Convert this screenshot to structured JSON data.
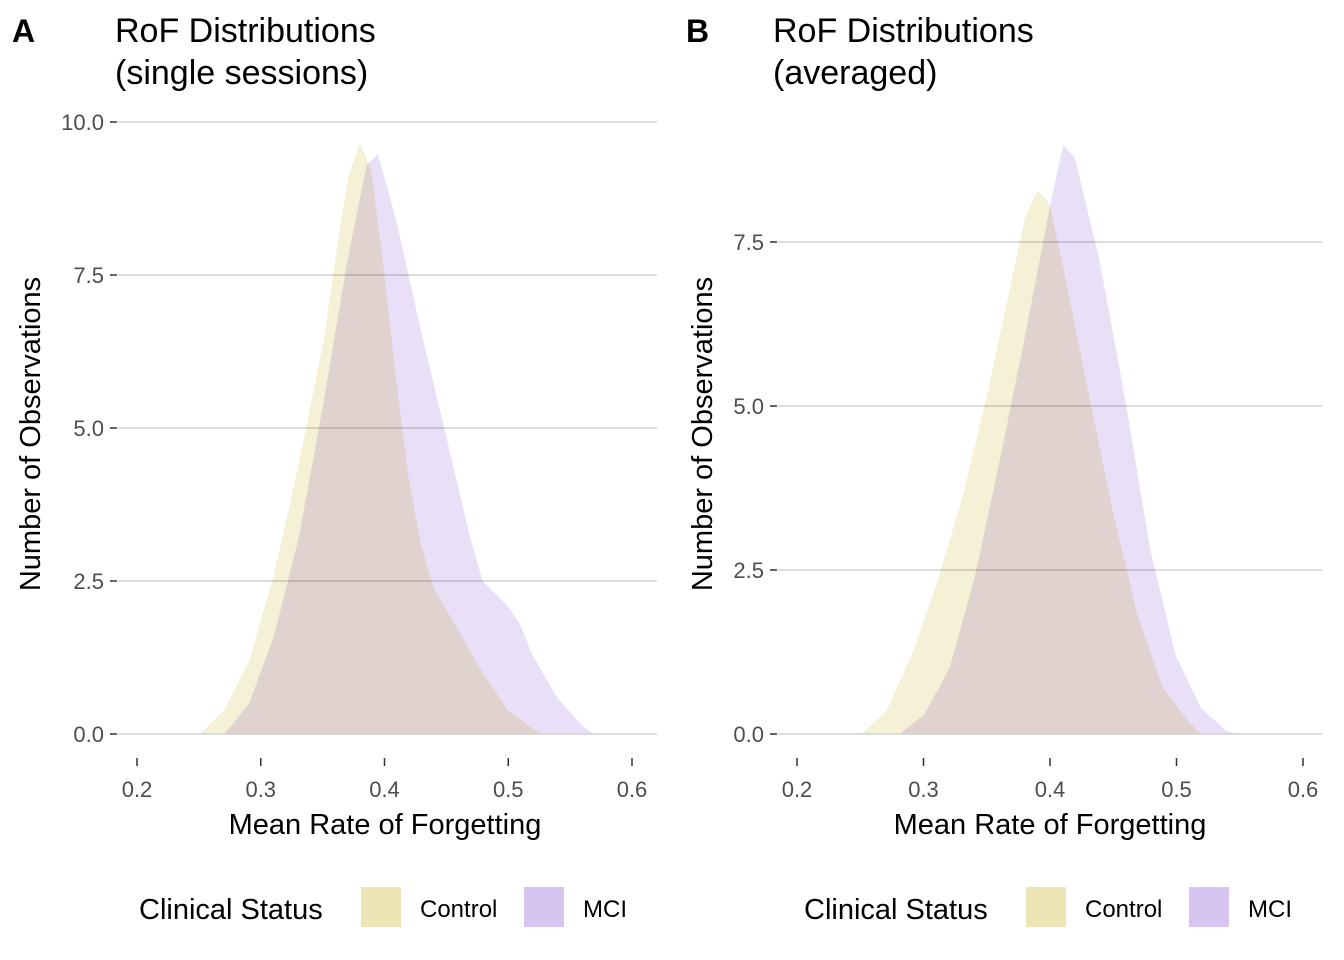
{
  "chart_data": [
    {
      "panel": "A",
      "type": "area",
      "title": "RoF Distributions\n(single sessions)",
      "xlabel": "Mean Rate of Forgetting",
      "ylabel": "Number of Observations",
      "xlim": [
        0.2,
        0.6
      ],
      "ylim": [
        0,
        10
      ],
      "xticks": [
        "0.2",
        "0.3",
        "0.4",
        "0.5",
        "0.6"
      ],
      "yticks": [
        "0.0",
        "2.5",
        "5.0",
        "7.5",
        "10.0"
      ],
      "grid": true,
      "legend": {
        "title": "Clinical Status",
        "position": "bottom"
      },
      "series": [
        {
          "name": "Control",
          "color": "#ede5b5",
          "points": [
            [
              0.25,
              0
            ],
            [
              0.27,
              0.4
            ],
            [
              0.29,
              1.2
            ],
            [
              0.31,
              2.6
            ],
            [
              0.33,
              4.4
            ],
            [
              0.35,
              6.4
            ],
            [
              0.36,
              7.8
            ],
            [
              0.37,
              9.1
            ],
            [
              0.38,
              9.7
            ],
            [
              0.39,
              9.2
            ],
            [
              0.4,
              7.6
            ],
            [
              0.41,
              5.8
            ],
            [
              0.42,
              4.2
            ],
            [
              0.43,
              3.1
            ],
            [
              0.44,
              2.4
            ],
            [
              0.46,
              1.7
            ],
            [
              0.48,
              1.0
            ],
            [
              0.5,
              0.4
            ],
            [
              0.52,
              0.1
            ],
            [
              0.53,
              0
            ]
          ]
        },
        {
          "name": "MCI",
          "color": "#d7c4f0",
          "points": [
            [
              0.27,
              0
            ],
            [
              0.29,
              0.5
            ],
            [
              0.31,
              1.6
            ],
            [
              0.33,
              3.2
            ],
            [
              0.35,
              5.4
            ],
            [
              0.37,
              7.8
            ],
            [
              0.385,
              9.3
            ],
            [
              0.395,
              9.5
            ],
            [
              0.41,
              8.4
            ],
            [
              0.43,
              6.6
            ],
            [
              0.45,
              4.9
            ],
            [
              0.47,
              3.2
            ],
            [
              0.48,
              2.5
            ],
            [
              0.5,
              2.1
            ],
            [
              0.51,
              1.8
            ],
            [
              0.52,
              1.3
            ],
            [
              0.54,
              0.6
            ],
            [
              0.56,
              0.15
            ],
            [
              0.57,
              0
            ]
          ]
        }
      ]
    },
    {
      "panel": "B",
      "type": "area",
      "title": "RoF Distributions\n(averaged)",
      "xlabel": "Mean Rate of Forgetting",
      "ylabel": "Number of Observations",
      "xlim": [
        0.2,
        0.6
      ],
      "ylim": [
        0,
        9
      ],
      "xticks": [
        "0.2",
        "0.3",
        "0.4",
        "0.5",
        "0.6"
      ],
      "yticks": [
        "0.0",
        "2.5",
        "5.0",
        "7.5"
      ],
      "grid": true,
      "legend": {
        "title": "Clinical Status",
        "position": "bottom"
      },
      "series": [
        {
          "name": "Control",
          "color": "#ede5b5",
          "points": [
            [
              0.25,
              0
            ],
            [
              0.27,
              0.35
            ],
            [
              0.29,
              1.2
            ],
            [
              0.31,
              2.3
            ],
            [
              0.33,
              3.6
            ],
            [
              0.35,
              5.2
            ],
            [
              0.37,
              7.0
            ],
            [
              0.38,
              7.9
            ],
            [
              0.39,
              8.3
            ],
            [
              0.4,
              8.1
            ],
            [
              0.41,
              7.2
            ],
            [
              0.43,
              5.3
            ],
            [
              0.45,
              3.4
            ],
            [
              0.47,
              1.8
            ],
            [
              0.49,
              0.7
            ],
            [
              0.51,
              0.2
            ],
            [
              0.52,
              0
            ]
          ]
        },
        {
          "name": "MCI",
          "color": "#d7c4f0",
          "points": [
            [
              0.28,
              0
            ],
            [
              0.3,
              0.3
            ],
            [
              0.32,
              1.0
            ],
            [
              0.34,
              2.4
            ],
            [
              0.36,
              4.2
            ],
            [
              0.38,
              6.1
            ],
            [
              0.4,
              8.1
            ],
            [
              0.41,
              9.0
            ],
            [
              0.42,
              8.8
            ],
            [
              0.44,
              7.2
            ],
            [
              0.46,
              5.1
            ],
            [
              0.48,
              2.8
            ],
            [
              0.5,
              1.2
            ],
            [
              0.52,
              0.4
            ],
            [
              0.54,
              0.05
            ],
            [
              0.55,
              0
            ]
          ]
        }
      ]
    }
  ]
}
